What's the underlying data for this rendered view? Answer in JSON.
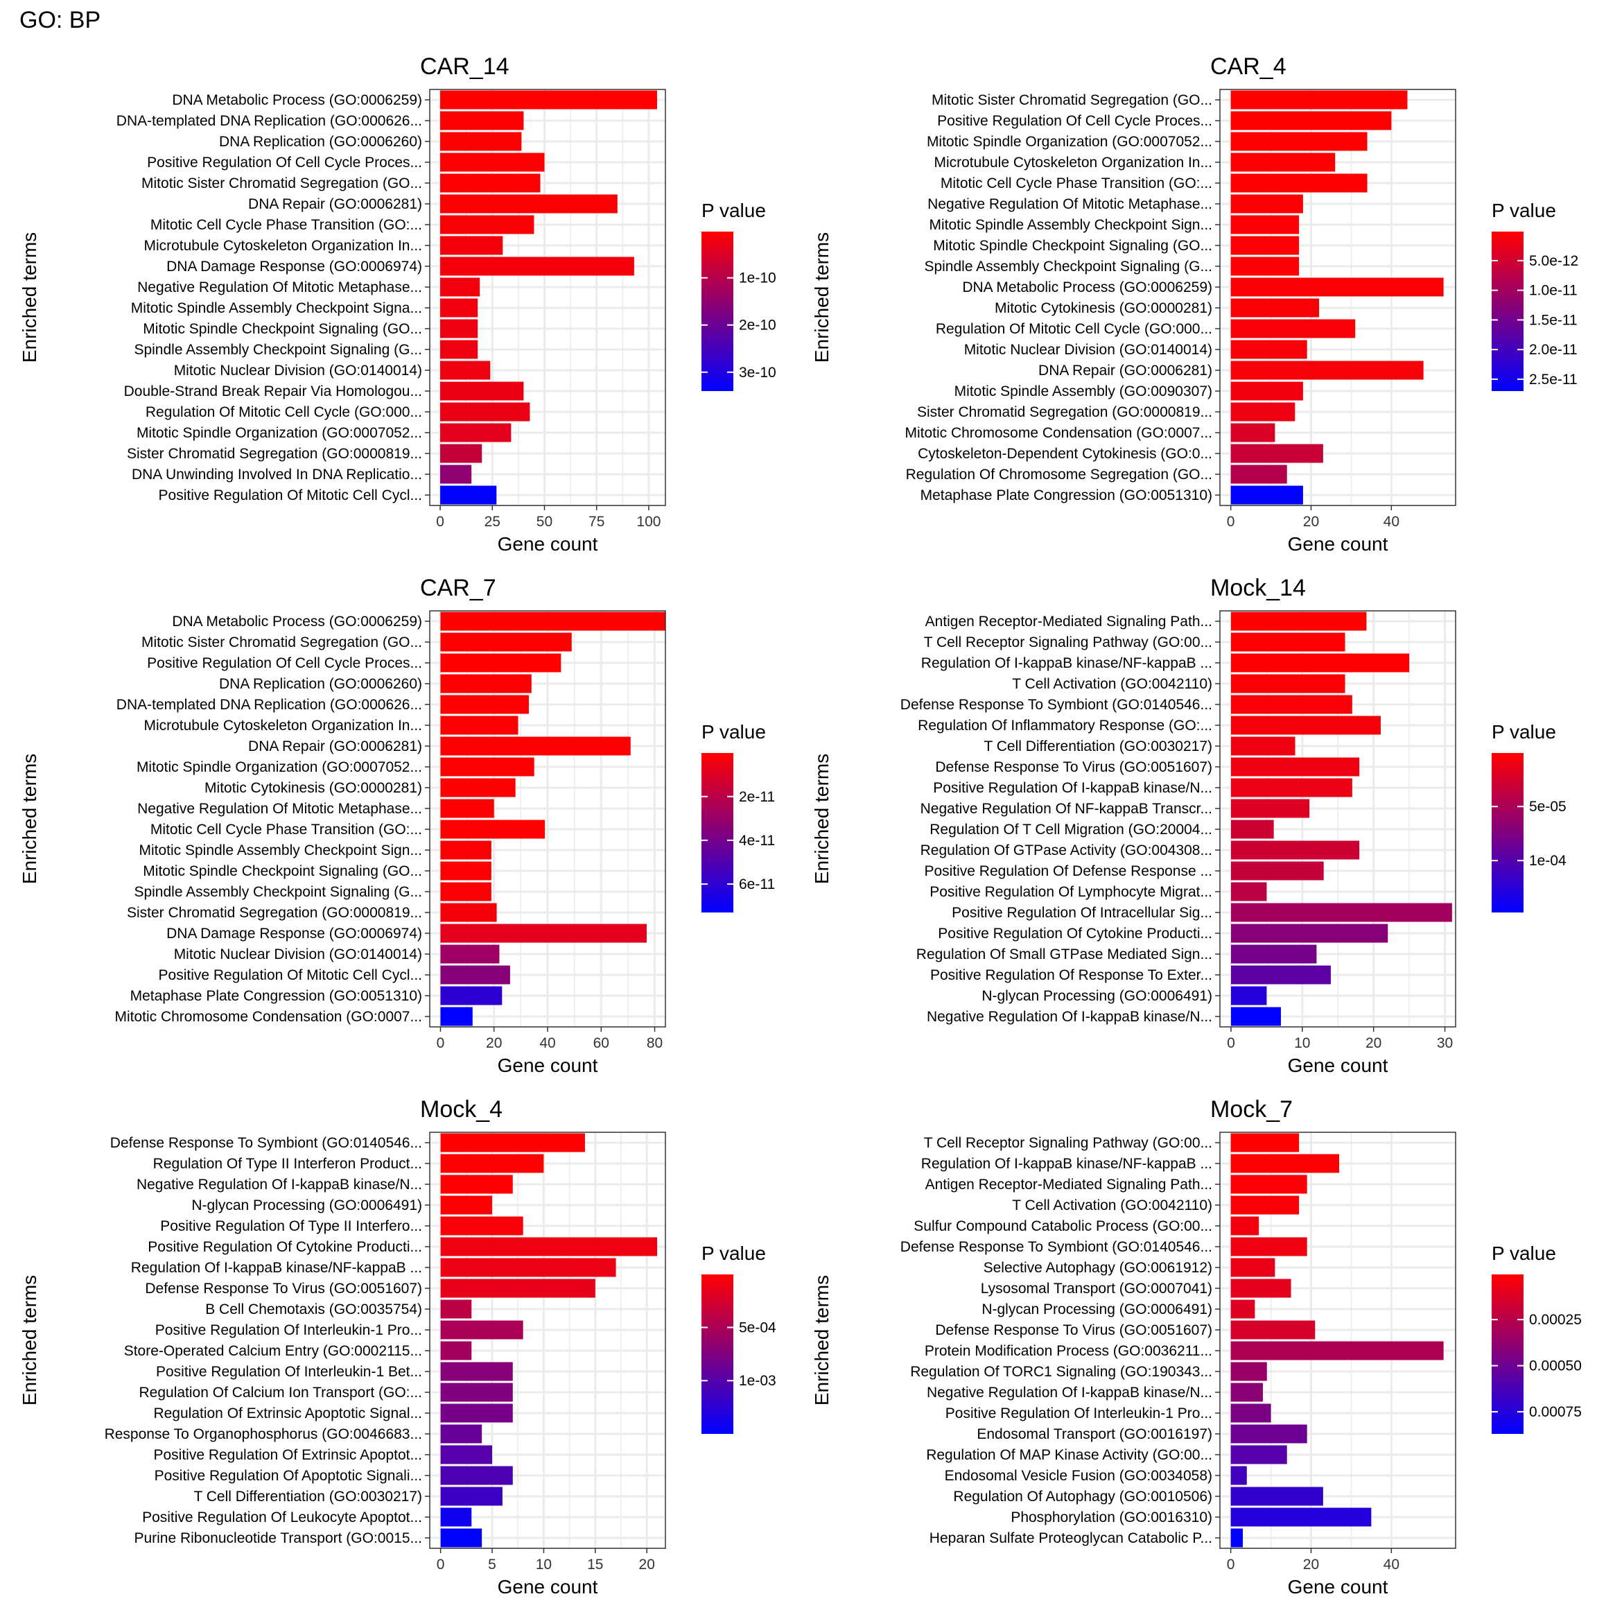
{
  "figure": {
    "title": "GO: BP",
    "x_label": "Gene count",
    "y_label": "Enriched terms",
    "legend_title": "P value",
    "colors": {
      "low_p": "#FF0000",
      "high_p": "#0000FF",
      "grid": "#EBEBEB",
      "panel_border": "#333333"
    }
  },
  "chart_data": [
    {
      "type": "bar",
      "orientation": "horizontal",
      "title": "CAR_14",
      "xlabel": "Gene count",
      "ylabel": "Enriched terms",
      "xlim": [
        -5,
        108
      ],
      "xticks": [
        0,
        25,
        50,
        75,
        100
      ],
      "xtick_labels": [
        "0",
        "25",
        "50",
        "75",
        "100"
      ],
      "grid": true,
      "legend_position": "right",
      "color_scale": {
        "p_min": 2e-12,
        "p_max": 3.4e-10,
        "ticks": [
          1e-10,
          2e-10,
          3e-10
        ],
        "tick_labels": [
          "1e-10",
          "2e-10",
          "3e-10"
        ]
      },
      "categories": [
        "DNA Metabolic Process (GO:0006259)",
        "DNA-templated DNA Replication (GO:000626...",
        "DNA Replication (GO:0006260)",
        "Positive Regulation Of Cell Cycle Proces...",
        "Mitotic Sister Chromatid Segregation (GO...",
        "DNA Repair (GO:0006281)",
        "Mitotic Cell Cycle Phase Transition (GO:...",
        "Microtubule Cytoskeleton Organization In...",
        "DNA Damage Response (GO:0006974)",
        "Negative Regulation Of Mitotic Metaphase...",
        "Mitotic Spindle Assembly Checkpoint Signa...",
        "Mitotic Spindle Checkpoint Signaling (GO...",
        "Spindle Assembly Checkpoint Signaling (G...",
        "Mitotic Nuclear Division (GO:0140014)",
        "Double-Strand Break Repair Via Homologou...",
        "Regulation Of Mitotic Cell Cycle (GO:000...",
        "Mitotic Spindle Organization (GO:0007052...",
        "Sister Chromatid Segregation (GO:0000819...",
        "DNA Unwinding Involved In DNA Replicatio...",
        "Positive Regulation Of Mitotic Cell Cycl..."
      ],
      "values": [
        104,
        40,
        39,
        50,
        48,
        85,
        45,
        30,
        93,
        19,
        18,
        18,
        18,
        24,
        40,
        43,
        34,
        20,
        15,
        27
      ],
      "p_values": [
        2e-12,
        5e-12,
        5e-12,
        6e-12,
        6e-12,
        6e-12,
        1e-11,
        1.5e-11,
        1.5e-11,
        2e-11,
        2e-11,
        2.5e-11,
        2.5e-11,
        2.5e-11,
        3e-11,
        3e-11,
        4e-11,
        8e-11,
        1.5e-10,
        3.4e-10
      ]
    },
    {
      "type": "bar",
      "orientation": "horizontal",
      "title": "CAR_4",
      "xlabel": "Gene count",
      "ylabel": "Enriched terms",
      "xlim": [
        -2.7,
        56
      ],
      "xticks": [
        0,
        20,
        40
      ],
      "xtick_labels": [
        "0",
        "20",
        "40"
      ],
      "grid": true,
      "legend_position": "right",
      "color_scale": {
        "p_min": 1e-13,
        "p_max": 2.7e-11,
        "ticks": [
          5e-12,
          1e-11,
          1.5e-11,
          2e-11,
          2.5e-11
        ],
        "tick_labels": [
          "5.0e-12",
          "1.0e-11",
          "1.5e-11",
          "2.0e-11",
          "2.5e-11"
        ]
      },
      "categories": [
        "Mitotic Sister Chromatid Segregation (GO...",
        "Positive Regulation Of Cell Cycle Proces...",
        "Mitotic Spindle Organization (GO:0007052...",
        "Microtubule Cytoskeleton Organization In...",
        "Mitotic Cell Cycle Phase Transition (GO:...",
        "Negative Regulation Of Mitotic Metaphase...",
        "Mitotic Spindle Assembly Checkpoint Sign...",
        "Mitotic Spindle Checkpoint Signaling (GO...",
        "Spindle Assembly Checkpoint Signaling (G...",
        "DNA Metabolic Process (GO:0006259)",
        "Mitotic Cytokinesis (GO:0000281)",
        "Regulation Of Mitotic Cell Cycle (GO:000...",
        "Mitotic Nuclear Division (GO:0140014)",
        "DNA Repair (GO:0006281)",
        "Mitotic Spindle Assembly (GO:0090307)",
        "Sister Chromatid Segregation (GO:0000819...",
        "Mitotic Chromosome Condensation (GO:0007...",
        "Cytoskeleton-Dependent Cytokinesis (GO:0...",
        "Regulation Of Chromosome Segregation (GO...",
        "Metaphase Plate Congression (GO:0051310)"
      ],
      "values": [
        44,
        40,
        34,
        26,
        34,
        18,
        17,
        17,
        17,
        53,
        22,
        31,
        19,
        48,
        18,
        16,
        11,
        23,
        14,
        18
      ],
      "p_values": [
        1e-13,
        1e-13,
        2e-13,
        3e-13,
        3e-13,
        5e-13,
        5e-13,
        5e-13,
        5e-13,
        5e-13,
        7e-13,
        8e-13,
        1e-12,
        1e-12,
        1.5e-12,
        2e-12,
        4e-12,
        6e-12,
        8e-12,
        2.7e-11
      ]
    },
    {
      "type": "bar",
      "orientation": "horizontal",
      "title": "CAR_7",
      "xlabel": "Gene count",
      "ylabel": "Enriched terms",
      "xlim": [
        -4,
        84
      ],
      "xticks": [
        0,
        20,
        40,
        60,
        80
      ],
      "xtick_labels": [
        "0",
        "20",
        "40",
        "60",
        "80"
      ],
      "grid": true,
      "legend_position": "right",
      "color_scale": {
        "p_min": 1e-13,
        "p_max": 7.3e-11,
        "ticks": [
          2e-11,
          4e-11,
          6e-11
        ],
        "tick_labels": [
          "2e-11",
          "4e-11",
          "6e-11"
        ]
      },
      "categories": [
        "DNA Metabolic Process (GO:0006259)",
        "Mitotic Sister Chromatid Segregation (GO...",
        "Positive Regulation Of Cell Cycle Proces...",
        "DNA Replication (GO:0006260)",
        "DNA-templated DNA Replication (GO:000626...",
        "Microtubule Cytoskeleton Organization In...",
        "DNA Repair (GO:0006281)",
        "Mitotic Spindle Organization (GO:0007052...",
        "Mitotic Cytokinesis (GO:0000281)",
        "Negative Regulation Of Mitotic Metaphase...",
        "Mitotic Cell Cycle Phase Transition (GO:...",
        "Mitotic Spindle Assembly Checkpoint Sign...",
        "Mitotic Spindle Checkpoint Signaling (GO...",
        "Spindle Assembly Checkpoint Signaling (G...",
        "Sister Chromatid Segregation (GO:0000819...",
        "DNA Damage Response (GO:0006974)",
        "Mitotic Nuclear Division (GO:0140014)",
        "Positive Regulation Of Mitotic Cell Cycl...",
        "Metaphase Plate Congression (GO:0051310)",
        "Mitotic Chromosome Condensation (GO:0007..."
      ],
      "values": [
        84,
        49,
        45,
        34,
        33,
        29,
        71,
        35,
        28,
        20,
        39,
        19,
        19,
        19,
        21,
        77,
        22,
        26,
        23,
        12
      ],
      "p_values": [
        1e-13,
        1e-13,
        2e-13,
        3e-13,
        3e-13,
        5e-13,
        5e-13,
        6e-13,
        8e-13,
        1e-12,
        1e-12,
        1.5e-12,
        1.5e-12,
        1.5e-12,
        3e-12,
        8e-12,
        2.8e-11,
        3.4e-11,
        6e-11,
        7.3e-11
      ]
    },
    {
      "type": "bar",
      "orientation": "horizontal",
      "title": "Mock_14",
      "xlabel": "Gene count",
      "ylabel": "Enriched terms",
      "xlim": [
        -1.55,
        31.5
      ],
      "xticks": [
        0,
        10,
        20,
        30
      ],
      "xtick_labels": [
        "0",
        "10",
        "20",
        "30"
      ],
      "grid": true,
      "legend_position": "right",
      "color_scale": {
        "p_min": 5e-07,
        "p_max": 0.000148,
        "ticks": [
          5e-05,
          0.0001
        ],
        "tick_labels": [
          "5e-05",
          "1e-04"
        ]
      },
      "categories": [
        "Antigen Receptor-Mediated Signaling Path...",
        "T Cell Receptor Signaling Pathway (GO:00...",
        "Regulation Of I-kappaB kinase/NF-kappaB ...",
        "T Cell Activation (GO:0042110)",
        "Defense Response To Symbiont (GO:0140546...",
        "Regulation Of Inflammatory Response (GO:...",
        "T Cell Differentiation (GO:0030217)",
        "Defense Response To Virus (GO:0051607)",
        "Positive Regulation Of I-kappaB kinase/N...",
        "Negative Regulation Of NF-kappaB Transcr...",
        "Regulation Of T Cell Migration (GO:20004...",
        "Regulation Of GTPase Activity (GO:004308...",
        "Positive Regulation Of Defense Response ...",
        "Positive Regulation Of Lymphocyte Migrat...",
        "Positive Regulation Of Intracellular Sig...",
        "Positive Regulation Of Cytokine Producti...",
        "Regulation Of Small GTPase Mediated Sign...",
        "Positive Regulation Of Response To Exter...",
        "N-glycan Processing (GO:0006491)",
        "Negative Regulation Of I-kappaB kinase/N..."
      ],
      "values": [
        19,
        16,
        25,
        16,
        17,
        21,
        9,
        18,
        17,
        11,
        6,
        18,
        13,
        5,
        31,
        22,
        12,
        14,
        5,
        7
      ],
      "p_values": [
        5e-07,
        1e-06,
        2e-06,
        3e-06,
        5e-06,
        6e-06,
        1e-05,
        1e-05,
        1.2e-05,
        2e-05,
        3e-05,
        3e-05,
        3.5e-05,
        4e-05,
        5.5e-05,
        7e-05,
        8e-05,
        9.5e-05,
        0.000128,
        0.000148
      ]
    },
    {
      "type": "bar",
      "orientation": "horizontal",
      "title": "Mock_4",
      "xlabel": "Gene count",
      "ylabel": "Enriched terms",
      "xlim": [
        -1.05,
        21.8
      ],
      "xticks": [
        0,
        5,
        10,
        15,
        20
      ],
      "xtick_labels": [
        "0",
        "5",
        "10",
        "15",
        "20"
      ],
      "grid": true,
      "legend_position": "right",
      "color_scale": {
        "p_min": 2e-06,
        "p_max": 0.0015,
        "ticks": [
          0.0005,
          0.001
        ],
        "tick_labels": [
          "5e-04",
          "1e-03"
        ]
      },
      "categories": [
        "Defense Response To Symbiont (GO:0140546...",
        "Regulation Of Type II Interferon Product...",
        "Negative Regulation Of I-kappaB kinase/N...",
        "N-glycan Processing (GO:0006491)",
        "Positive Regulation Of Type II Interfero...",
        "Positive Regulation Of Cytokine Producti...",
        "Regulation Of I-kappaB kinase/NF-kappaB ...",
        "Defense Response To Virus (GO:0051607)",
        "B Cell Chemotaxis (GO:0035754)",
        "Positive Regulation Of Interleukin-1 Pro...",
        "Store-Operated Calcium Entry (GO:0002115...",
        "Positive Regulation Of Interleukin-1 Bet...",
        "Regulation Of Calcium Ion Transport (GO:...",
        "Regulation Of Extrinsic Apoptotic Signal...",
        "Response To Organophosphorus (GO:0046683...",
        "Positive Regulation Of Extrinsic Apoptot...",
        "Positive Regulation Of Apoptotic Signali...",
        "T Cell Differentiation (GO:0030217)",
        "Positive Regulation Of Leukocyte Apoptot...",
        "Purine Ribonucleotide Transport (GO:0015..."
      ],
      "values": [
        14,
        10,
        7,
        5,
        8,
        21,
        17,
        15,
        3,
        8,
        3,
        7,
        7,
        7,
        4,
        5,
        7,
        6,
        3,
        4
      ],
      "p_values": [
        2e-06,
        5e-06,
        1e-05,
        2e-05,
        5e-05,
        0.0001,
        0.00012,
        0.00015,
        0.0004,
        0.0005,
        0.00055,
        0.0007,
        0.00075,
        0.0008,
        0.0009,
        0.001,
        0.00105,
        0.00115,
        0.0014,
        0.0015
      ]
    },
    {
      "type": "bar",
      "orientation": "horizontal",
      "title": "Mock_7",
      "xlabel": "Gene count",
      "ylabel": "Enriched terms",
      "xlim": [
        -2.7,
        56
      ],
      "xticks": [
        0,
        20,
        40
      ],
      "xtick_labels": [
        "0",
        "20",
        "40"
      ],
      "grid": true,
      "legend_position": "right",
      "color_scale": {
        "p_min": 5e-06,
        "p_max": 0.00087,
        "ticks": [
          0.00025,
          0.0005,
          0.00075
        ],
        "tick_labels": [
          "0.00025",
          "0.00050",
          "0.00075"
        ]
      },
      "categories": [
        "T Cell Receptor Signaling Pathway (GO:00...",
        "Regulation Of I-kappaB kinase/NF-kappaB ...",
        "Antigen Receptor-Mediated Signaling Path...",
        "T Cell Activation (GO:0042110)",
        "Sulfur Compound Catabolic Process (GO:00...",
        "Defense Response To Symbiont (GO:0140546...",
        "Selective Autophagy (GO:0061912)",
        "Lysosomal Transport (GO:0007041)",
        "N-glycan Processing (GO:0006491)",
        "Defense Response To Virus (GO:0051607)",
        "Protein Modification Process (GO:0036211...",
        "Regulation Of TORC1 Signaling (GO:190343...",
        "Negative Regulation Of I-kappaB kinase/N...",
        "Positive Regulation Of Interleukin-1 Pro...",
        "Endosomal Transport (GO:0016197)",
        "Regulation Of MAP Kinase Activity (GO:00...",
        "Endosomal Vesicle Fusion (GO:0034058)",
        "Regulation Of Autophagy (GO:0010506)",
        "Phosphorylation (GO:0016310)",
        "Heparan Sulfate Proteoglycan Catabolic P..."
      ],
      "values": [
        17,
        27,
        19,
        17,
        7,
        19,
        11,
        15,
        6,
        21,
        53,
        9,
        8,
        10,
        19,
        14,
        4,
        23,
        35,
        3
      ],
      "p_values": [
        5e-06,
        1e-05,
        2e-05,
        3e-05,
        5e-05,
        6e-05,
        8e-05,
        0.0001,
        0.00012,
        0.00015,
        0.00028,
        0.00035,
        0.0004,
        0.00045,
        0.0005,
        0.00058,
        0.00065,
        0.0007,
        0.00075,
        0.00087
      ]
    }
  ]
}
